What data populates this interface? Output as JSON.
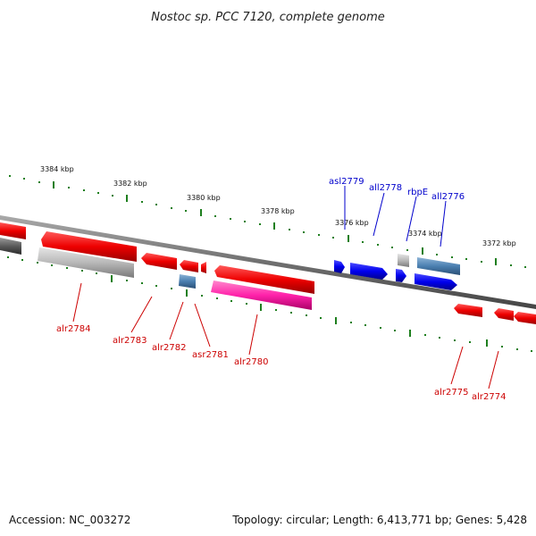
{
  "title": "Nostoc sp. PCC 7120, complete genome",
  "ticks": [
    "3384 kbp",
    "3382 kbp",
    "3380 kbp",
    "3378 kbp",
    "3376 kbp",
    "3374 kbp",
    "3372 kbp"
  ],
  "genes": {
    "alr2784": "alr2784",
    "alr2783": "alr2783",
    "alr2782": "alr2782",
    "asr2781": "asr2781",
    "alr2780": "alr2780",
    "asl2779": "asl2779",
    "all2778": "all2778",
    "rbpE": "rbpE",
    "all2776": "all2776",
    "alr2775": "alr2775",
    "alr2774": "alr2774"
  },
  "footer": {
    "accession": "Accession: NC_003272",
    "summary": "Topology: circular; Length: 6,413,771 bp; Genes: 5,428"
  },
  "colors": {
    "forward_gene": "#ff0000",
    "reverse_gene": "#0000ff",
    "rna": "#4a7fb0",
    "pseudo": "#b0b0b0",
    "highlight": "#ff33aa",
    "genome_line": "#777777",
    "ticks": "#1e7f1e"
  }
}
